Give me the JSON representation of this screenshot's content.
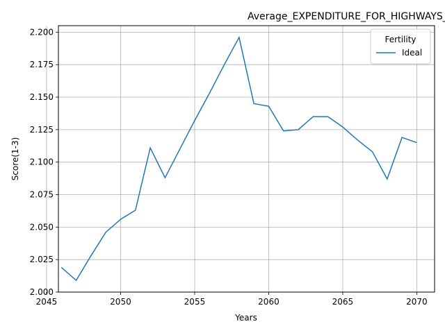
{
  "chart_data": {
    "type": "line",
    "title": "Average_EXPENDITURE_FOR_HIGHWAYS_Black_Male_Below_Average_Ideal",
    "xlabel": "Years",
    "ylabel": "Score(1-3)",
    "xlim": [
      2045.8,
      2071.2
    ],
    "ylim": [
      2.0,
      2.205
    ],
    "xticks": [
      2045,
      2050,
      2055,
      2060,
      2065,
      2070
    ],
    "yticks": [
      2.0,
      2.025,
      2.05,
      2.075,
      2.1,
      2.125,
      2.15,
      2.175,
      2.2
    ],
    "ytick_labels": [
      "2.000",
      "2.025",
      "2.050",
      "2.075",
      "2.100",
      "2.125",
      "2.150",
      "2.175",
      "2.200"
    ],
    "grid": true,
    "legend": {
      "title": "Fertility",
      "placement": "top-right"
    },
    "series": [
      {
        "name": "Ideal",
        "color": "#1f77b4",
        "x": [
          2046,
          2047,
          2048,
          2049,
          2050,
          2051,
          2052,
          2053,
          2054,
          2055,
          2056,
          2057,
          2058,
          2059,
          2060,
          2061,
          2062,
          2063,
          2064,
          2065,
          2066,
          2067,
          2068,
          2069,
          2070
        ],
        "y": [
          2.019,
          2.009,
          2.028,
          2.046,
          2.056,
          2.063,
          2.111,
          2.088,
          2.11,
          2.132,
          2.153,
          2.175,
          2.196,
          2.145,
          2.143,
          2.124,
          2.125,
          2.135,
          2.135,
          2.127,
          2.117,
          2.108,
          2.087,
          2.119,
          2.115
        ]
      }
    ]
  }
}
